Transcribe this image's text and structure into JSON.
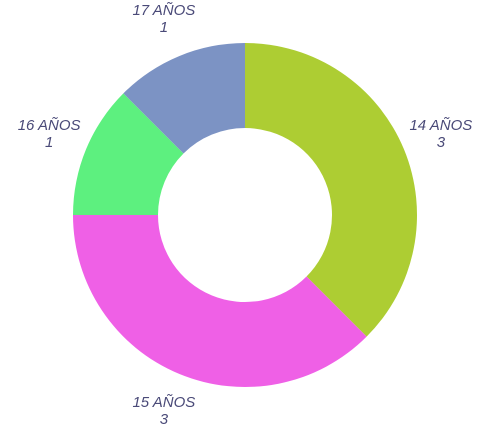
{
  "chart_data": {
    "type": "donut",
    "categories": [
      "14 AÑOS",
      "15 AÑOS",
      "16 AÑOS",
      "17 AÑOS"
    ],
    "values": [
      3,
      3,
      1,
      1
    ],
    "colors": [
      "#adcd33",
      "#ef60e6",
      "#5df07f",
      "#7c93c4"
    ]
  }
}
